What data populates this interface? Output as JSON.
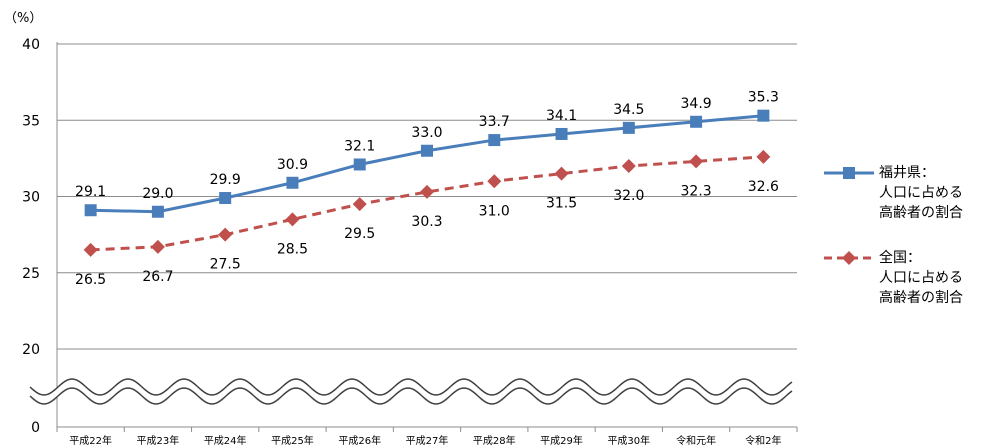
{
  "chart_data": {
    "type": "line",
    "ylabel": "（%）",
    "categories": [
      "平成22年",
      "平成23年",
      "平成24年",
      "平成25年",
      "平成26年",
      "平成27年",
      "平成28年",
      "平成29年",
      "平成30年",
      "令和元年",
      "令和2年"
    ],
    "y_ticks": [
      0,
      20,
      25,
      30,
      35,
      40
    ],
    "axis_break": true,
    "ylim": [
      0,
      40
    ],
    "series": [
      {
        "name": "福井県：人口に占める高齢者の割合",
        "name_lines": [
          "福井県：",
          "人口に占める",
          "高齢者の割合"
        ],
        "color": "#4a7ebb",
        "marker": "square",
        "line_style": "solid",
        "values": [
          29.1,
          29.0,
          29.9,
          30.9,
          32.1,
          33.0,
          33.7,
          34.1,
          34.5,
          34.9,
          35.3
        ],
        "labels": [
          "29.1",
          "29.0",
          "29.9",
          "30.9",
          "32.1",
          "33.0",
          "33.7",
          "34.1",
          "34.5",
          "34.9",
          "35.3"
        ]
      },
      {
        "name": "全国：人口に占める高齢者の割合",
        "name_lines": [
          "全国：",
          "人口に占める",
          "高齢者の割合"
        ],
        "color": "#c0504d",
        "marker": "diamond",
        "line_style": "dashed",
        "values": [
          26.5,
          26.7,
          27.5,
          28.5,
          29.5,
          30.3,
          31.0,
          31.5,
          32.0,
          32.3,
          32.6
        ],
        "labels": [
          "26.5",
          "26.7",
          "27.5",
          "28.5",
          "29.5",
          "30.3",
          "31.0",
          "31.5",
          "32.0",
          "32.3",
          "32.6"
        ]
      }
    ],
    "grid": "horizontal",
    "legend_position": "right"
  }
}
